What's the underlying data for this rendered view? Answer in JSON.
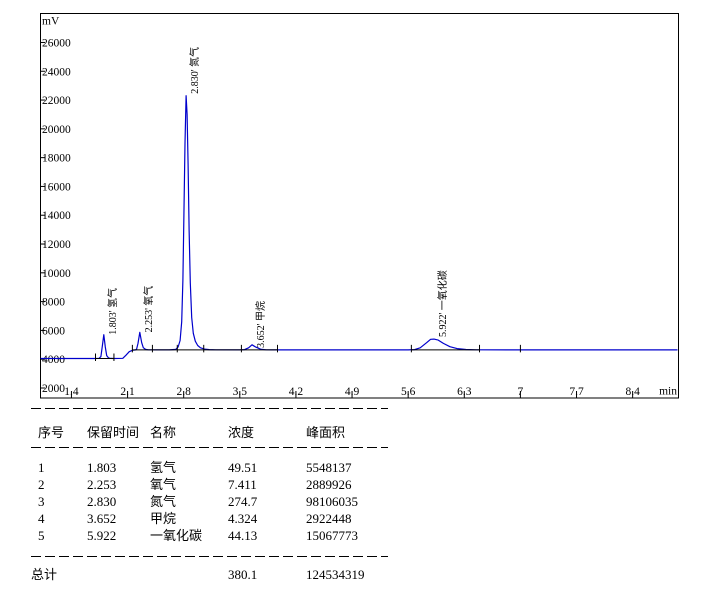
{
  "chart_data": {
    "type": "line",
    "title": "",
    "xlabel": "min",
    "ylabel": "mV",
    "xlim": [
      1.014,
      8.972
    ],
    "ylim": [
      1306,
      28011
    ],
    "grid": false,
    "legend": "none",
    "colors": {
      "trace": "#0000cc",
      "axis": "#000000",
      "annotation": "#000000"
    },
    "x_tick_values": [
      1.4,
      2.1,
      2.8,
      3.5,
      4.2,
      4.9,
      5.6,
      6.3,
      7,
      7.7,
      8.4
    ],
    "x_tick_labels": [
      "1.4",
      "2.1",
      "2.8",
      "3.5",
      "4.2",
      "4.9",
      "5.6",
      "6.3",
      "7",
      "7.7",
      "8.4"
    ],
    "y_tick_values": [
      2000,
      4000,
      6000,
      8000,
      10000,
      12000,
      14000,
      16000,
      18000,
      20000,
      22000,
      24000,
      26000
    ],
    "peaks": [
      {
        "rt": 1.803,
        "name": "氢气",
        "label": "1.803' 氢气",
        "apex_t": 1.803,
        "apex_mv": 5700,
        "label_dy": 0
      },
      {
        "rt": 2.253,
        "name": "氧气",
        "label": "2.253' 氧气",
        "apex_t": 2.253,
        "apex_mv": 5860,
        "label_dy": 0
      },
      {
        "rt": 2.83,
        "name": "氮气",
        "label": "2.830' 氮气",
        "apex_t": 2.83,
        "apex_mv": 22300,
        "label_dy": -2
      },
      {
        "rt": 3.652,
        "name": "甲烷",
        "label": "3.652' 甲烷",
        "apex_t": 3.652,
        "apex_mv": 5000,
        "label_dy": 3
      },
      {
        "rt": 5.922,
        "name": "一氧化碳",
        "label": "5.922' 一氧化碳",
        "apex_t": 5.922,
        "apex_mv": 5400,
        "label_dy": -2
      }
    ],
    "trace_points": [
      [
        1.014,
        4050
      ],
      [
        1.55,
        4050
      ],
      [
        1.7,
        4050
      ],
      [
        1.745,
        4065
      ],
      [
        1.768,
        4180
      ],
      [
        1.785,
        4900
      ],
      [
        1.803,
        5700
      ],
      [
        1.822,
        4850
      ],
      [
        1.84,
        4250
      ],
      [
        1.862,
        4090
      ],
      [
        1.89,
        4055
      ],
      [
        1.93,
        4050
      ],
      [
        2.04,
        4060
      ],
      [
        2.08,
        4280
      ],
      [
        2.12,
        4520
      ],
      [
        2.16,
        4620
      ],
      [
        2.2,
        4650
      ],
      [
        2.213,
        4700
      ],
      [
        2.23,
        5100
      ],
      [
        2.253,
        5860
      ],
      [
        2.276,
        5150
      ],
      [
        2.296,
        4800
      ],
      [
        2.325,
        4680
      ],
      [
        2.36,
        4655
      ],
      [
        2.42,
        4650
      ],
      [
        2.62,
        4650
      ],
      [
        2.7,
        4680
      ],
      [
        2.73,
        4850
      ],
      [
        2.755,
        5300
      ],
      [
        2.775,
        6600
      ],
      [
        2.79,
        9500
      ],
      [
        2.803,
        14000
      ],
      [
        2.816,
        19000
      ],
      [
        2.83,
        22300
      ],
      [
        2.842,
        21000
      ],
      [
        2.855,
        17500
      ],
      [
        2.868,
        13000
      ],
      [
        2.882,
        9300
      ],
      [
        2.9,
        6900
      ],
      [
        2.92,
        5800
      ],
      [
        2.945,
        5250
      ],
      [
        2.975,
        4950
      ],
      [
        3.01,
        4790
      ],
      [
        3.06,
        4700
      ],
      [
        3.12,
        4670
      ],
      [
        3.2,
        4655
      ],
      [
        3.5,
        4650
      ],
      [
        3.56,
        4665
      ],
      [
        3.61,
        4790
      ],
      [
        3.652,
        5000
      ],
      [
        3.7,
        4840
      ],
      [
        3.76,
        4695
      ],
      [
        3.83,
        4655
      ],
      [
        3.9,
        4650
      ],
      [
        5.6,
        4650
      ],
      [
        5.68,
        4665
      ],
      [
        5.75,
        4790
      ],
      [
        5.83,
        5150
      ],
      [
        5.88,
        5380
      ],
      [
        5.922,
        5400
      ],
      [
        5.975,
        5330
      ],
      [
        6.04,
        5100
      ],
      [
        6.12,
        4870
      ],
      [
        6.21,
        4740
      ],
      [
        6.32,
        4675
      ],
      [
        6.45,
        4652
      ],
      [
        7.0,
        4650
      ],
      [
        8.96,
        4650
      ]
    ],
    "integration": {
      "segments": [
        {
          "t1": 1.7,
          "t2": 1.93,
          "mv": 4050
        },
        {
          "t1": 2.16,
          "t2": 3.97,
          "mv": 4650
        },
        {
          "t1": 5.64,
          "t2": 6.49,
          "mv": 4650
        }
      ],
      "ticks": [
        {
          "t": 1.7,
          "mv": 4050
        },
        {
          "t": 1.93,
          "mv": 4050
        },
        {
          "t": 2.16,
          "mv": 4650
        },
        {
          "t": 2.41,
          "mv": 4650
        },
        {
          "t": 2.72,
          "mv": 4650
        },
        {
          "t": 3.05,
          "mv": 4650
        },
        {
          "t": 3.52,
          "mv": 4650
        },
        {
          "t": 3.97,
          "mv": 4650
        },
        {
          "t": 5.64,
          "mv": 4650
        },
        {
          "t": 6.49,
          "mv": 4650
        },
        {
          "t": 7.0,
          "mv": 4650
        }
      ]
    }
  },
  "table": {
    "headers": [
      "序号",
      "保留时间",
      "名称",
      "浓度",
      "峰面积"
    ],
    "rows": [
      [
        "1",
        "1.803",
        "氢气",
        "49.51",
        "5548137"
      ],
      [
        "2",
        "2.253",
        "氧气",
        "7.411",
        "2889926"
      ],
      [
        "3",
        "2.830",
        "氮气",
        "274.7",
        "98106035"
      ],
      [
        "4",
        "3.652",
        "甲烷",
        "4.324",
        "2922448"
      ],
      [
        "5",
        "5.922",
        "一氧化碳",
        "44.13",
        "15067773"
      ]
    ],
    "total_row": {
      "label": "总计",
      "concentration": "380.1",
      "peak_area": "124534319"
    }
  }
}
